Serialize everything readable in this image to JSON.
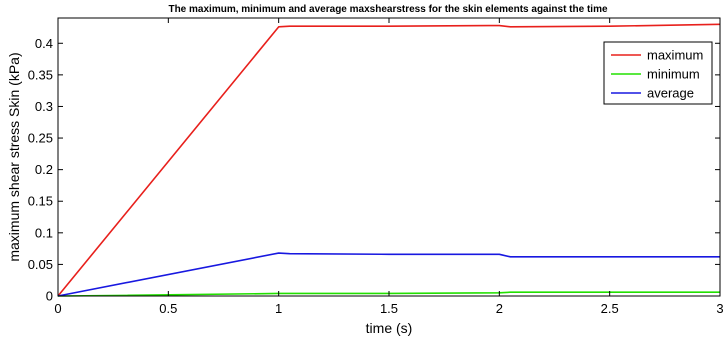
{
  "chart_data": {
    "type": "line",
    "title": "The maximum, minimum and average maxshearstress for the skin elements against the time",
    "xlabel": "time (s)",
    "ylabel": "maximum shear stress Skin (kPa)",
    "xlim": [
      0,
      3
    ],
    "ylim": [
      0,
      0.44
    ],
    "xticks": [
      0,
      0.5,
      1,
      1.5,
      2,
      2.5,
      3
    ],
    "xtick_labels": [
      "0",
      "0.5",
      "1",
      "1.5",
      "2",
      "2.5",
      "3"
    ],
    "yticks": [
      0,
      0.05,
      0.1,
      0.15,
      0.2,
      0.25,
      0.3,
      0.35,
      0.4
    ],
    "ytick_labels": [
      "0",
      "0.05",
      "0.1",
      "0.15",
      "0.2",
      "0.25",
      "0.3",
      "0.35",
      "0.4"
    ],
    "grid": false,
    "legend_position": "top-right",
    "series": [
      {
        "name": "maximum",
        "color": "#e8201c",
        "x": [
          0,
          1,
          1.05,
          1.5,
          1.95,
          2,
          2.05,
          2.5,
          3
        ],
        "y": [
          0,
          0.426,
          0.427,
          0.427,
          0.428,
          0.428,
          0.426,
          0.427,
          0.43
        ]
      },
      {
        "name": "minimum",
        "color": "#22e000",
        "x": [
          0,
          0.3,
          1,
          1.5,
          2,
          2.05,
          2.5,
          3
        ],
        "y": [
          0,
          0.001,
          0.004,
          0.004,
          0.005,
          0.006,
          0.006,
          0.006
        ]
      },
      {
        "name": "average",
        "color": "#1818e0",
        "x": [
          0,
          1,
          1.05,
          1.5,
          2,
          2.05,
          2.5,
          3
        ],
        "y": [
          0,
          0.068,
          0.067,
          0.066,
          0.066,
          0.062,
          0.062,
          0.062
        ]
      }
    ]
  }
}
